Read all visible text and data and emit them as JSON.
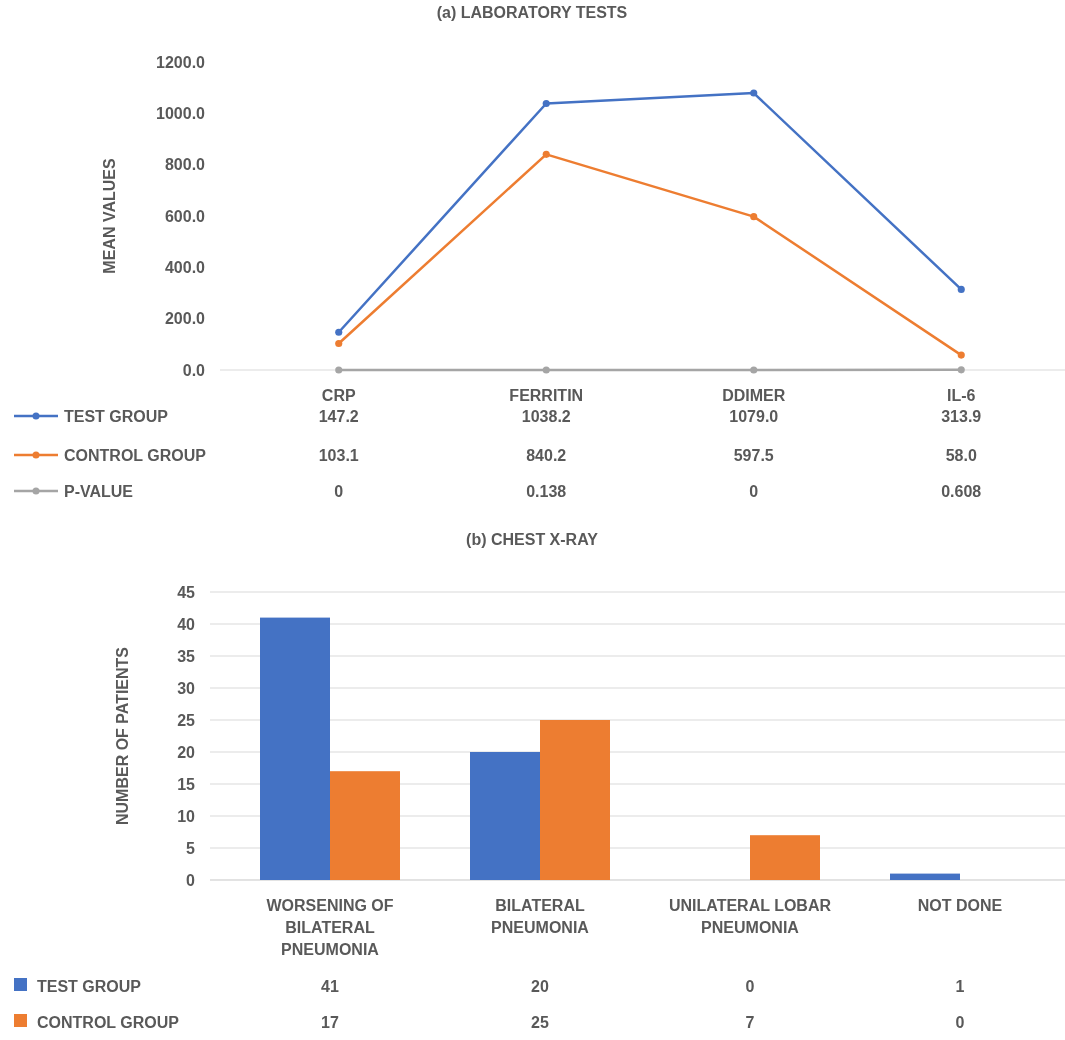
{
  "chart_data": [
    {
      "type": "line",
      "title": "(a) LABORATORY TESTS",
      "ylabel": "MEAN VALUES",
      "categories": [
        "CRP",
        "FERRITIN",
        "DDIMER",
        "IL-6"
      ],
      "series": [
        {
          "name": "TEST GROUP",
          "color": "#4472c4",
          "values": [
            147.2,
            1038.2,
            1079.0,
            313.9
          ],
          "value_labels": [
            "147.2",
            "1038.2",
            "1079.0",
            "313.9"
          ]
        },
        {
          "name": "CONTROL GROUP",
          "color": "#ed7d31",
          "values": [
            103.1,
            840.2,
            597.5,
            58.0
          ],
          "value_labels": [
            "103.1",
            "840.2",
            "597.5",
            "58.0"
          ]
        },
        {
          "name": "P-VALUE",
          "color": "#a5a5a5",
          "values": [
            0,
            0.138,
            0,
            0.608
          ],
          "value_labels": [
            "0",
            "0.138",
            "0",
            "0.608"
          ]
        }
      ],
      "ylim": [
        0,
        1200
      ],
      "yticks": [
        {
          "value": 0,
          "label": "0.0"
        },
        {
          "value": 200,
          "label": "200.0"
        },
        {
          "value": 400,
          "label": "400.0"
        },
        {
          "value": 600,
          "label": "600.0"
        },
        {
          "value": 800,
          "label": "800.0"
        },
        {
          "value": 1000,
          "label": "1000.0"
        },
        {
          "value": 1200,
          "label": "1200.0"
        }
      ],
      "grid": false,
      "marker": "circle",
      "line_style": "solid",
      "legend": "bottom"
    },
    {
      "type": "bar",
      "title": "(b) CHEST X-RAY",
      "ylabel": "NUMBER OF PATIENTS",
      "categories": [
        "WORSENING OF BILATERAL PNEUMONIA",
        "BILATERAL PNEUMONIA",
        "UNILATERAL LOBAR PNEUMONIA",
        "NOT DONE"
      ],
      "series": [
        {
          "name": "TEST GROUP",
          "color": "#4472c4",
          "values": [
            41,
            20,
            0,
            1
          ]
        },
        {
          "name": "CONTROL GROUP",
          "color": "#ed7d31",
          "values": [
            17,
            25,
            7,
            0
          ]
        }
      ],
      "ylim": [
        0,
        45
      ],
      "yticks": [
        0,
        5,
        10,
        15,
        20,
        25,
        30,
        35,
        40,
        45
      ],
      "grid": "y",
      "data_labels": true,
      "legend": "bottom"
    }
  ]
}
